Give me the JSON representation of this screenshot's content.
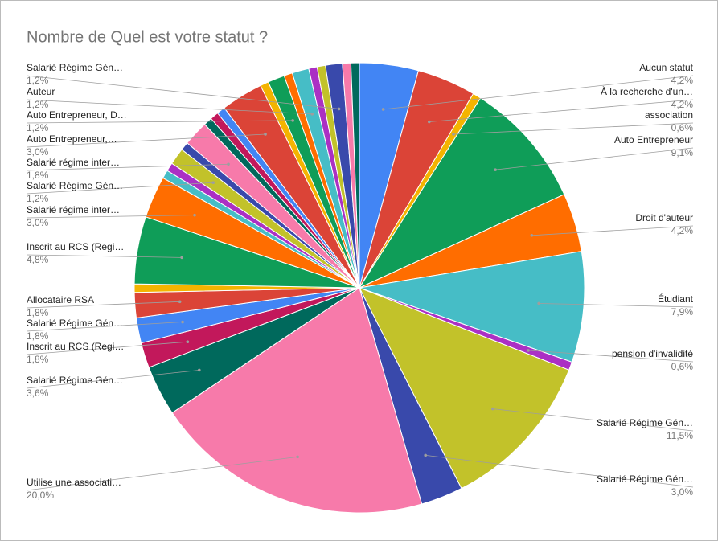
{
  "chart_data": {
    "type": "pie",
    "title": "Nombre de Quel est votre statut ?",
    "categories": [
      "Aucun statut",
      "À la recherche d'un…",
      "association",
      "Auto Entrepreneur",
      "Droit d'auteur",
      "Étudiant",
      "pension d'invalidité",
      "Salarié Régime Gén…",
      "Salarié Régime Gén…",
      "Utilise une associati…",
      "Salarié Régime Gén…",
      "Inscrit au RCS (Regi…",
      "Salarié Régime Gén…",
      "Allocataire RSA",
      null,
      "Inscrit au RCS (Regi…",
      "Salarié régime inter…",
      null,
      null,
      "Salarié Régime Gén…",
      null,
      "Salarié régime inter…",
      null,
      null,
      null,
      "Auto Entrepreneur,…",
      null,
      "Auto Entrepreneur, D…",
      null,
      "Auteur",
      null,
      null,
      "Salarié Régime Gén…",
      null,
      null
    ],
    "values": [
      4.2,
      4.2,
      0.6,
      9.1,
      4.2,
      7.9,
      0.6,
      11.5,
      3.0,
      20.0,
      3.6,
      1.8,
      1.8,
      1.8,
      0.6,
      4.8,
      3.0,
      0.6,
      0.6,
      1.2,
      0.6,
      1.8,
      0.6,
      0.6,
      0.6,
      3.0,
      0.6,
      1.2,
      0.6,
      1.2,
      0.6,
      0.6,
      1.2,
      0.6,
      0.6
    ],
    "value_labels": [
      "4,2%",
      "4,2%",
      "0,6%",
      "9,1%",
      "4,2%",
      "7,9%",
      "0,6%",
      "11,5%",
      "3,0%",
      "20,0%",
      "3,6%",
      "1,8%",
      "1,8%",
      "1,8%",
      null,
      "4,8%",
      "3,0%",
      null,
      null,
      "1,2%",
      null,
      "1,8%",
      null,
      null,
      null,
      "3,0%",
      null,
      "1,2%",
      null,
      "1,2%",
      null,
      null,
      "1,2%",
      null,
      null
    ],
    "colors": [
      "#4285f4",
      "#db4437",
      "#f4b400",
      "#0f9d58",
      "#ff6d00",
      "#46bdc6",
      "#ab30c4",
      "#c2c22a",
      "#3949ab",
      "#f77aaa",
      "#00695c",
      "#c2185b"
    ]
  }
}
